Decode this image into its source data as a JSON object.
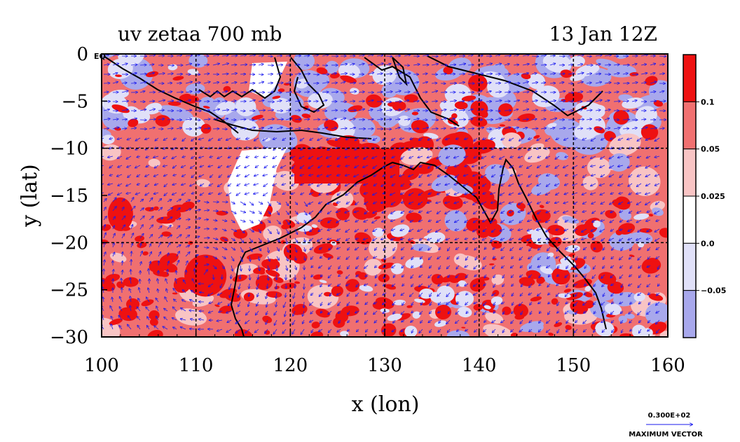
{
  "chart_data": {
    "type": "heatmap",
    "title": "uv zetaa 700 mb",
    "subtitle": "13 Jan 12Z",
    "xlabel": "x (lon)",
    "ylabel": "y (lat)",
    "xlim": [
      100,
      160
    ],
    "ylim": [
      -30,
      0
    ],
    "x_ticks": [
      "100",
      "110",
      "120",
      "130",
      "140",
      "150",
      "160"
    ],
    "y_ticks": [
      "0",
      "−5",
      "−10",
      "−15",
      "−20",
      "−25",
      "−30"
    ],
    "grid": true,
    "corner_label": "EQ",
    "colorbar": {
      "levels": [
        "0.1",
        "0.05",
        "0.025",
        "0.0",
        "−0.05"
      ],
      "colors": [
        "#ee1111",
        "#f07070",
        "#f8c4c4",
        "#ffffff",
        "#e0e0f8",
        "#a8a8ec"
      ]
    },
    "vectors": {
      "color": "#1a1aee",
      "scale_value": "0.300E+02",
      "scale_label": "MAXIMUM VECTOR"
    },
    "palette": {
      "strong_positive": "#ee1111",
      "positive": "#f07070",
      "weak_positive": "#f8c4c4",
      "weak_negative": "#e0e0f8",
      "negative": "#a8a8ec",
      "coast": "#000000"
    }
  }
}
